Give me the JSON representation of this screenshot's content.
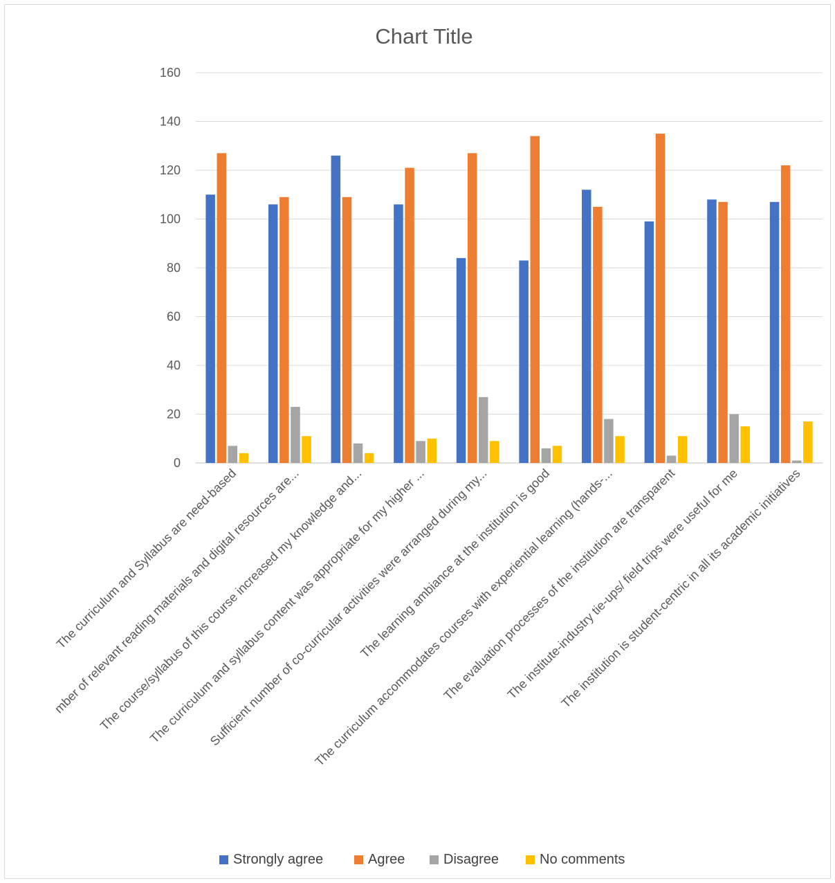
{
  "chart_data": {
    "type": "bar",
    "title": "Chart Title",
    "xlabel": "",
    "ylabel": "",
    "ylim": [
      0,
      160
    ],
    "yticks": [
      0,
      20,
      40,
      60,
      80,
      100,
      120,
      140,
      160
    ],
    "grid": true,
    "legend_position": "bottom",
    "categories": [
      "The curriculum and Syllabus are need-based",
      "mber of relevant reading materials and digital resources are...",
      "The course/syllabus of this course increased my knowledge and...",
      "The curriculum and syllabus content was appropriate for my higher ...",
      "Sufficient number of co-curricular activities were arranged during my...",
      "The learning ambiance at the institution is good",
      "The curriculum accommodates courses with experiential learning (hands-...",
      "The evaluation processes of the institution are transparent",
      "The institute-industry tie-ups/ field trips were useful for me",
      "The institution is student-centric in all its academic initiatives"
    ],
    "series": [
      {
        "name": "Strongly agree",
        "color": "#4472C4",
        "values": [
          110,
          106,
          126,
          106,
          84,
          83,
          112,
          99,
          108,
          107
        ]
      },
      {
        "name": "Agree",
        "color": "#ED7D31",
        "values": [
          127,
          109,
          109,
          121,
          127,
          134,
          105,
          135,
          107,
          122
        ]
      },
      {
        "name": "Disagree",
        "color": "#A5A5A5",
        "values": [
          7,
          23,
          8,
          9,
          27,
          6,
          18,
          3,
          20,
          1
        ]
      },
      {
        "name": "No comments",
        "color": "#FFC000",
        "values": [
          4,
          11,
          4,
          10,
          9,
          7,
          11,
          11,
          15,
          17
        ]
      }
    ]
  }
}
